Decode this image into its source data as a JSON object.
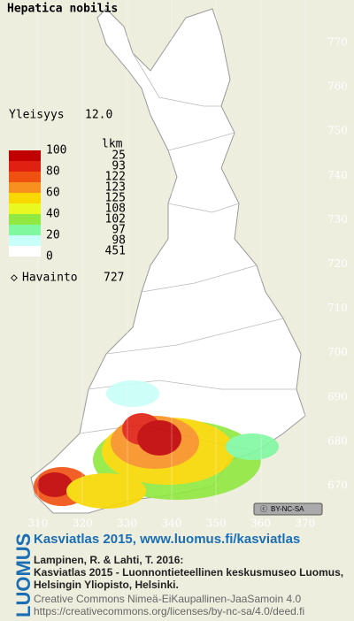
{
  "title": "Hepatica nobilis",
  "frequency": {
    "label": "Yleisyys",
    "value": "12.0"
  },
  "legend": {
    "header": "lkm",
    "scale_labels": [
      "100",
      "80",
      "60",
      "40",
      "20",
      "0"
    ],
    "rows": [
      {
        "color": "#c00000",
        "count": "25"
      },
      {
        "color": "#e02010",
        "count": "93"
      },
      {
        "color": "#f05010",
        "count": "122"
      },
      {
        "color": "#f89020",
        "count": "123"
      },
      {
        "color": "#f8d800",
        "count": "125"
      },
      {
        "color": "#e8f820",
        "count": "108"
      },
      {
        "color": "#90e840",
        "count": "102"
      },
      {
        "color": "#80f8a0",
        "count": "97"
      },
      {
        "color": "#c8fff8",
        "count": "98"
      },
      {
        "color": "#ffffff",
        "count": "451"
      }
    ]
  },
  "observations": {
    "label": "Havainto",
    "value": "727"
  },
  "map": {
    "y_labels": [
      "770",
      "760",
      "750",
      "740",
      "730",
      "720",
      "710",
      "700",
      "690",
      "680",
      "670"
    ],
    "x_labels": [
      "310",
      "320",
      "330",
      "340",
      "350",
      "360",
      "370"
    ]
  },
  "license_badge": "BY-NC-SA",
  "footer": {
    "logo": "LUOMUS",
    "link": "Kasviatlas 2015, www.luomus.fi/kasviatlas",
    "citation": [
      "Lampinen, R. & Lahti, T. 2016:",
      "Kasviatlas 2015 - Luonnontieteellinen keskusmuseo Luomus,",
      "Helsingin Yliopisto, Helsinki."
    ],
    "license": [
      "Creative Commons Nimeä-EiKaupallinen-JaaSamoin 4.0",
      "https://creativecommons.org/licenses/by-nc-sa/4.0/deed.fi"
    ]
  }
}
